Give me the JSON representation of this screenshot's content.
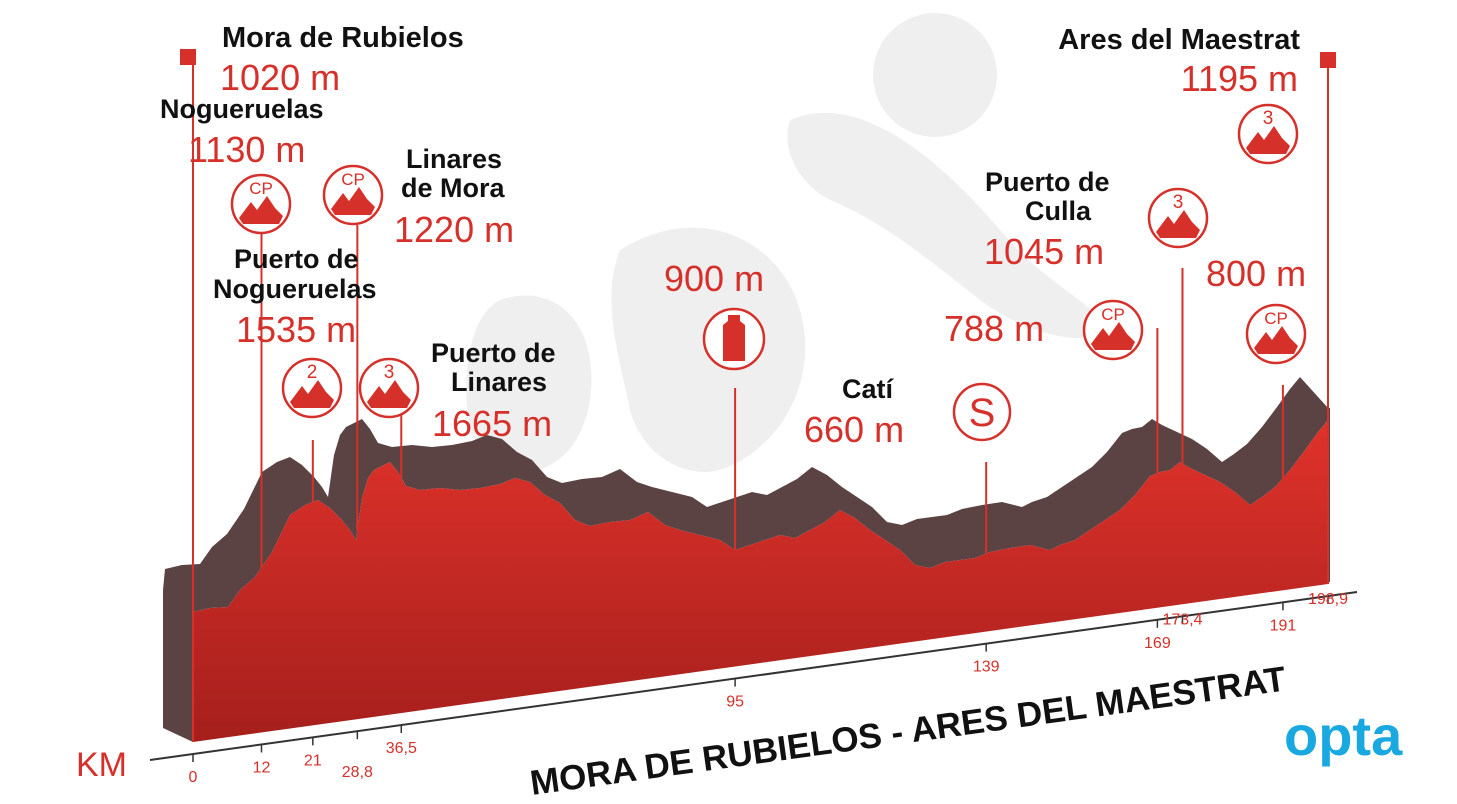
{
  "chart_data": {
    "type": "area",
    "title": "MORA DE RUBIELOS - ARES DEL MAESTRAT",
    "x_axis_label": "KM",
    "brand": "opta",
    "colors": {
      "accent": "#d6302a",
      "profile_dark": "#5b4343",
      "profile_red": "#d6302a",
      "logo": "#19a8e0"
    },
    "km_ticks": [
      "0",
      "12",
      "21",
      "28,8",
      "36,5",
      "95",
      "139",
      "169",
      "173,4",
      "191",
      "198,9"
    ],
    "tick_values": [
      0,
      12,
      21,
      28.8,
      36.5,
      95,
      139,
      169,
      173.4,
      191,
      198.9
    ],
    "total_km": 198.9,
    "points": [
      {
        "id": "start",
        "name": "Mora de Rubielos",
        "altitude": "1020 m",
        "km": 0,
        "icon": "start-flag-icon"
      },
      {
        "id": "noguerueslas-cp",
        "name": "Nogueruelas",
        "altitude": "1130 m",
        "km": 12,
        "icon": "cp-mountain-icon",
        "badge": "CP"
      },
      {
        "id": "pto-noguerueslas",
        "name": "Puerto de Nogueruelas",
        "altitude": "1535 m",
        "km": 21,
        "icon": "cat2-mountain-icon",
        "badge": "2"
      },
      {
        "id": "linares-mora",
        "name": "Linares de Mora",
        "altitude": "1220 m",
        "km": 28.8,
        "icon": "cp-mountain-icon",
        "badge": "CP"
      },
      {
        "id": "pto-linares",
        "name": "Puerto de Linares",
        "altitude": "1665 m",
        "km": 36.5,
        "icon": "cat3-mountain-icon",
        "badge": "3"
      },
      {
        "id": "feed",
        "name": "",
        "altitude": "900 m",
        "km": 95,
        "icon": "water-bottle-icon"
      },
      {
        "id": "cati",
        "name": "Catí",
        "altitude": "660 m",
        "km": 139,
        "icon": "sprint-icon",
        "badge": "S"
      },
      {
        "id": "cp-788",
        "name": "",
        "altitude": "788 m",
        "km": 169,
        "icon": "cp-mountain-icon",
        "badge": "CP"
      },
      {
        "id": "pto-culla",
        "name": "Puerto de Culla",
        "altitude": "1045 m",
        "km": 173.4,
        "icon": "cat3-mountain-icon",
        "badge": "3"
      },
      {
        "id": "cp-800",
        "name": "",
        "altitude": "800 m",
        "km": 191,
        "icon": "cp-mountain-icon",
        "badge": "CP"
      },
      {
        "id": "finish",
        "name": "Ares del Maestrat",
        "altitude": "1195 m",
        "km": 198.9,
        "icon": "cat3-mountain-icon",
        "badge": "3"
      }
    ],
    "labels": {
      "start_name": "Mora de Rubielos",
      "start_alt": "1020 m",
      "nog_name": "Nogueruelas",
      "nog_alt": "1130 m",
      "linm_name1": "Linares",
      "linm_name2": "de Mora",
      "linm_alt": "1220 m",
      "pnog_name1": "Puerto de",
      "pnog_name2": "Nogueruelas",
      "pnog_alt": "1535 m",
      "plin_name1": "Puerto de",
      "plin_name2": "Linares",
      "plin_alt": "1665 m",
      "feed_alt": "900 m",
      "cati_name": "Catí",
      "cati_alt": "660 m",
      "pculla_name1": "Puerto de",
      "pculla_name2": "Culla",
      "pculla_alt": "1045 m",
      "cp788_alt": "788 m",
      "cp800_alt": "800 m",
      "finish_name": "Ares del Maestrat",
      "finish_alt": "1195 m"
    },
    "badges": {
      "cp": "CP",
      "cat2": "2",
      "cat3": "3",
      "sprint": "S"
    }
  }
}
